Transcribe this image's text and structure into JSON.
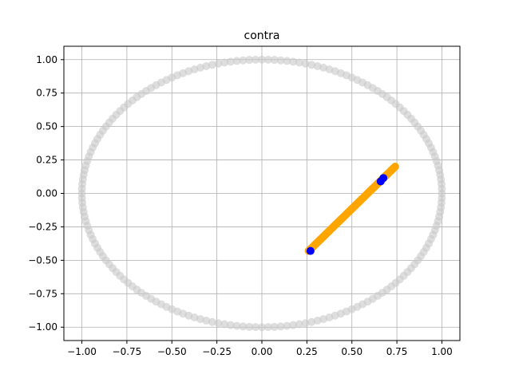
{
  "chart_data": {
    "type": "scatter",
    "title": "contra",
    "xlabel": "",
    "ylabel": "",
    "xlim": [
      -1.1,
      1.1
    ],
    "ylim": [
      -1.1,
      1.1
    ],
    "grid": true,
    "x_ticks": [
      -1.0,
      -0.75,
      -0.5,
      -0.25,
      0.0,
      0.25,
      0.5,
      0.75,
      1.0
    ],
    "x_tick_labels": [
      "−1.00",
      "−0.75",
      "−0.50",
      "−0.25",
      "0.00",
      "0.25",
      "0.50",
      "0.75",
      "1.00"
    ],
    "y_ticks": [
      1.0,
      0.75,
      0.5,
      0.25,
      0.0,
      -0.25,
      -0.5,
      -0.75,
      -1.0
    ],
    "y_tick_labels": [
      "1.00",
      "0.75",
      "0.50",
      "0.25",
      "0.00",
      "−0.25",
      "−0.50",
      "−0.75",
      "−1.00"
    ],
    "series": [
      {
        "kind": "unit-circle",
        "color": "#c8c8c8",
        "alpha": 0.6,
        "points": 180,
        "center": [
          0,
          0
        ],
        "radius": 1.0
      },
      {
        "kind": "segment",
        "color": "#ffa500",
        "points": 60,
        "from": [
          0.26,
          -0.43
        ],
        "to": [
          0.74,
          0.2
        ]
      },
      {
        "kind": "points",
        "color": "#0000ff",
        "x": [
          0.27,
          0.66,
          0.675
        ],
        "y": [
          -0.43,
          0.09,
          0.115
        ]
      }
    ]
  }
}
